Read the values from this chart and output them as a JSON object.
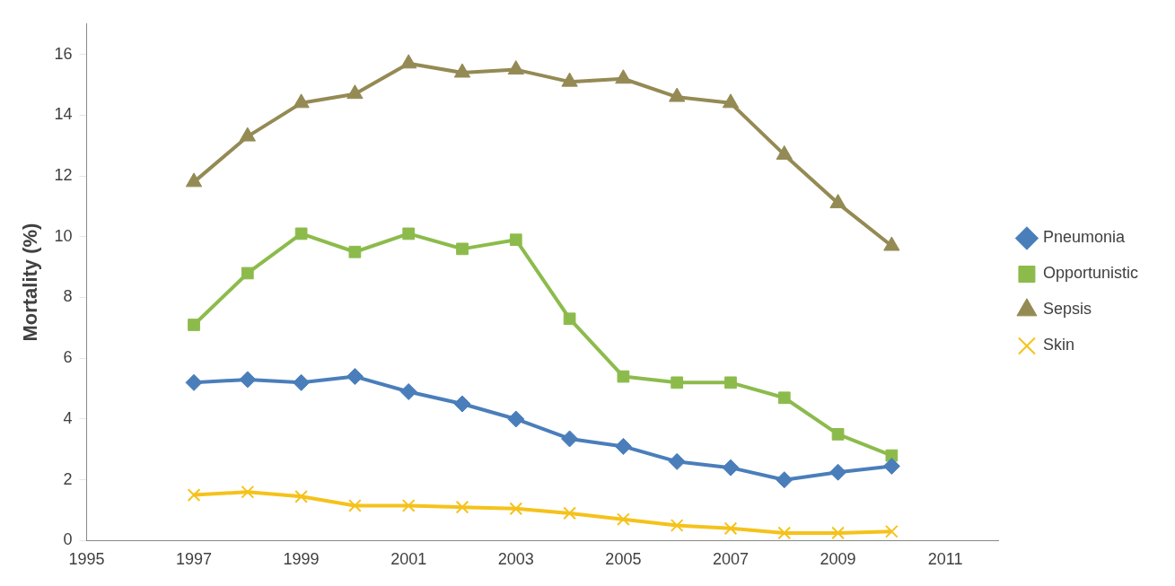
{
  "chart_data": {
    "type": "line",
    "ylabel": "Mortality (%)",
    "x": [
      1997,
      1998,
      1999,
      2000,
      2001,
      2002,
      2003,
      2004,
      2005,
      2006,
      2007,
      2008,
      2009,
      2010
    ],
    "series": [
      {
        "name": "Pneumonia",
        "color": "#4a7ebb",
        "marker": "diamond",
        "values": [
          5.2,
          5.3,
          5.2,
          5.4,
          4.9,
          4.5,
          4.0,
          3.35,
          3.1,
          2.6,
          2.4,
          2.0,
          2.25,
          2.45
        ]
      },
      {
        "name": "Opportunistic",
        "color": "#8cbb4c",
        "marker": "square",
        "values": [
          7.1,
          8.8,
          10.1,
          9.5,
          10.1,
          9.6,
          9.9,
          7.3,
          5.4,
          5.2,
          5.2,
          4.7,
          3.5,
          2.8
        ]
      },
      {
        "name": "Sepsis",
        "color": "#948a54",
        "marker": "triangle",
        "values": [
          11.8,
          13.3,
          14.4,
          14.7,
          15.7,
          15.4,
          15.5,
          15.1,
          15.2,
          14.6,
          14.4,
          12.7,
          11.1,
          9.7
        ]
      },
      {
        "name": "Skin",
        "color": "#f5c21b",
        "marker": "cross",
        "values": [
          1.5,
          1.6,
          1.45,
          1.15,
          1.15,
          1.1,
          1.05,
          0.9,
          0.7,
          0.5,
          0.4,
          0.25,
          0.25,
          0.3
        ]
      }
    ],
    "xlim": [
      1995,
      2012
    ],
    "xticks": [
      1995,
      1997,
      1999,
      2001,
      2003,
      2005,
      2007,
      2009,
      2011
    ],
    "ylim": [
      0,
      17
    ],
    "yticks": [
      0,
      2,
      4,
      6,
      8,
      10,
      12,
      14,
      16
    ],
    "grid": false,
    "legend": "right",
    "line_style": "solid"
  }
}
